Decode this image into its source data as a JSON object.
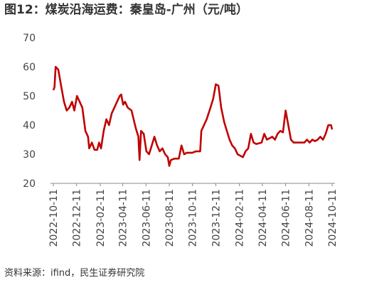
{
  "chart_data": {
    "type": "line",
    "title": "图12：煤炭沿海运费：秦皇岛-广州（元/吨）",
    "source": "资料来源：ifind，民生证券研究院",
    "x": [
      "2022-10-11",
      "2022-10-14",
      "2022-10-17",
      "2022-10-24",
      "2022-11-01",
      "2022-11-08",
      "2022-11-15",
      "2022-11-22",
      "2022-11-29",
      "2022-12-05",
      "2022-12-12",
      "2022-12-19",
      "2022-12-26",
      "2023-01-03",
      "2023-01-10",
      "2023-01-13",
      "2023-01-20",
      "2023-01-27",
      "2023-02-03",
      "2023-02-08",
      "2023-02-13",
      "2023-02-20",
      "2023-02-27",
      "2023-03-06",
      "2023-03-13",
      "2023-03-20",
      "2023-03-27",
      "2023-04-03",
      "2023-04-07",
      "2023-04-12",
      "2023-04-17",
      "2023-04-24",
      "2023-05-04",
      "2023-05-15",
      "2023-05-22",
      "2023-05-25",
      "2023-05-29",
      "2023-06-05",
      "2023-06-12",
      "2023-06-19",
      "2023-06-26",
      "2023-07-03",
      "2023-07-10",
      "2023-07-17",
      "2023-07-24",
      "2023-07-31",
      "2023-08-07",
      "2023-08-11",
      "2023-08-15",
      "2023-08-25",
      "2023-09-05",
      "2023-09-12",
      "2023-09-19",
      "2023-09-26",
      "2023-10-10",
      "2023-10-20",
      "2023-10-31",
      "2023-11-03",
      "2023-11-10",
      "2023-11-17",
      "2023-11-27",
      "2023-12-04",
      "2023-12-11",
      "2023-12-18",
      "2023-12-25",
      "2024-01-02",
      "2024-01-09",
      "2024-01-16",
      "2024-01-23",
      "2024-01-30",
      "2024-02-06",
      "2024-02-20",
      "2024-02-27",
      "2024-03-05",
      "2024-03-12",
      "2024-03-19",
      "2024-03-26",
      "2024-04-09",
      "2024-04-16",
      "2024-04-23",
      "2024-05-07",
      "2024-05-14",
      "2024-05-21",
      "2024-05-28",
      "2024-06-04",
      "2024-06-11",
      "2024-06-18",
      "2024-06-25",
      "2024-07-02",
      "2024-07-16",
      "2024-07-30",
      "2024-08-06",
      "2024-08-13",
      "2024-08-20",
      "2024-08-27",
      "2024-09-03",
      "2024-09-10",
      "2024-09-17",
      "2024-09-24",
      "2024-10-01",
      "2024-10-08",
      "2024-10-11"
    ],
    "series": [
      {
        "color": "#c00000",
        "values": [
          52,
          53,
          60,
          59,
          53,
          48,
          45,
          46,
          48,
          45,
          50,
          48,
          46,
          38,
          36,
          32,
          34,
          31.5,
          31.5,
          34,
          32,
          38,
          42,
          40,
          44,
          46,
          48,
          50,
          50.5,
          47,
          48,
          46,
          45,
          39,
          36,
          28,
          38,
          37,
          31,
          30,
          33,
          36,
          33,
          31,
          32,
          30,
          29,
          26,
          28,
          28.5,
          28.5,
          33,
          30,
          30.5,
          30.5,
          31,
          31,
          38,
          40,
          42,
          46,
          49,
          54,
          53.5,
          46,
          41,
          38,
          35,
          33,
          32,
          30,
          29,
          31,
          32,
          37,
          34,
          33.5,
          34,
          37,
          35,
          36,
          35,
          37,
          38,
          37.5,
          45,
          40,
          35,
          34,
          34,
          34,
          35,
          34,
          35,
          34.5,
          35,
          36,
          35,
          37,
          40,
          40,
          38.5
        ]
      }
    ],
    "xlim": [
      "2022-10-11",
      "2024-10-11"
    ],
    "xticks": [
      "2022-10-11",
      "2022-12-11",
      "2023-02-11",
      "2023-04-11",
      "2023-06-11",
      "2023-08-11",
      "2023-10-11",
      "2023-12-11",
      "2024-02-11",
      "2024-04-11",
      "2024-06-11",
      "2024-08-11",
      "2024-10-11"
    ],
    "ylim": [
      20,
      70
    ],
    "yticks": [
      20,
      30,
      40,
      50,
      60,
      70
    ]
  }
}
